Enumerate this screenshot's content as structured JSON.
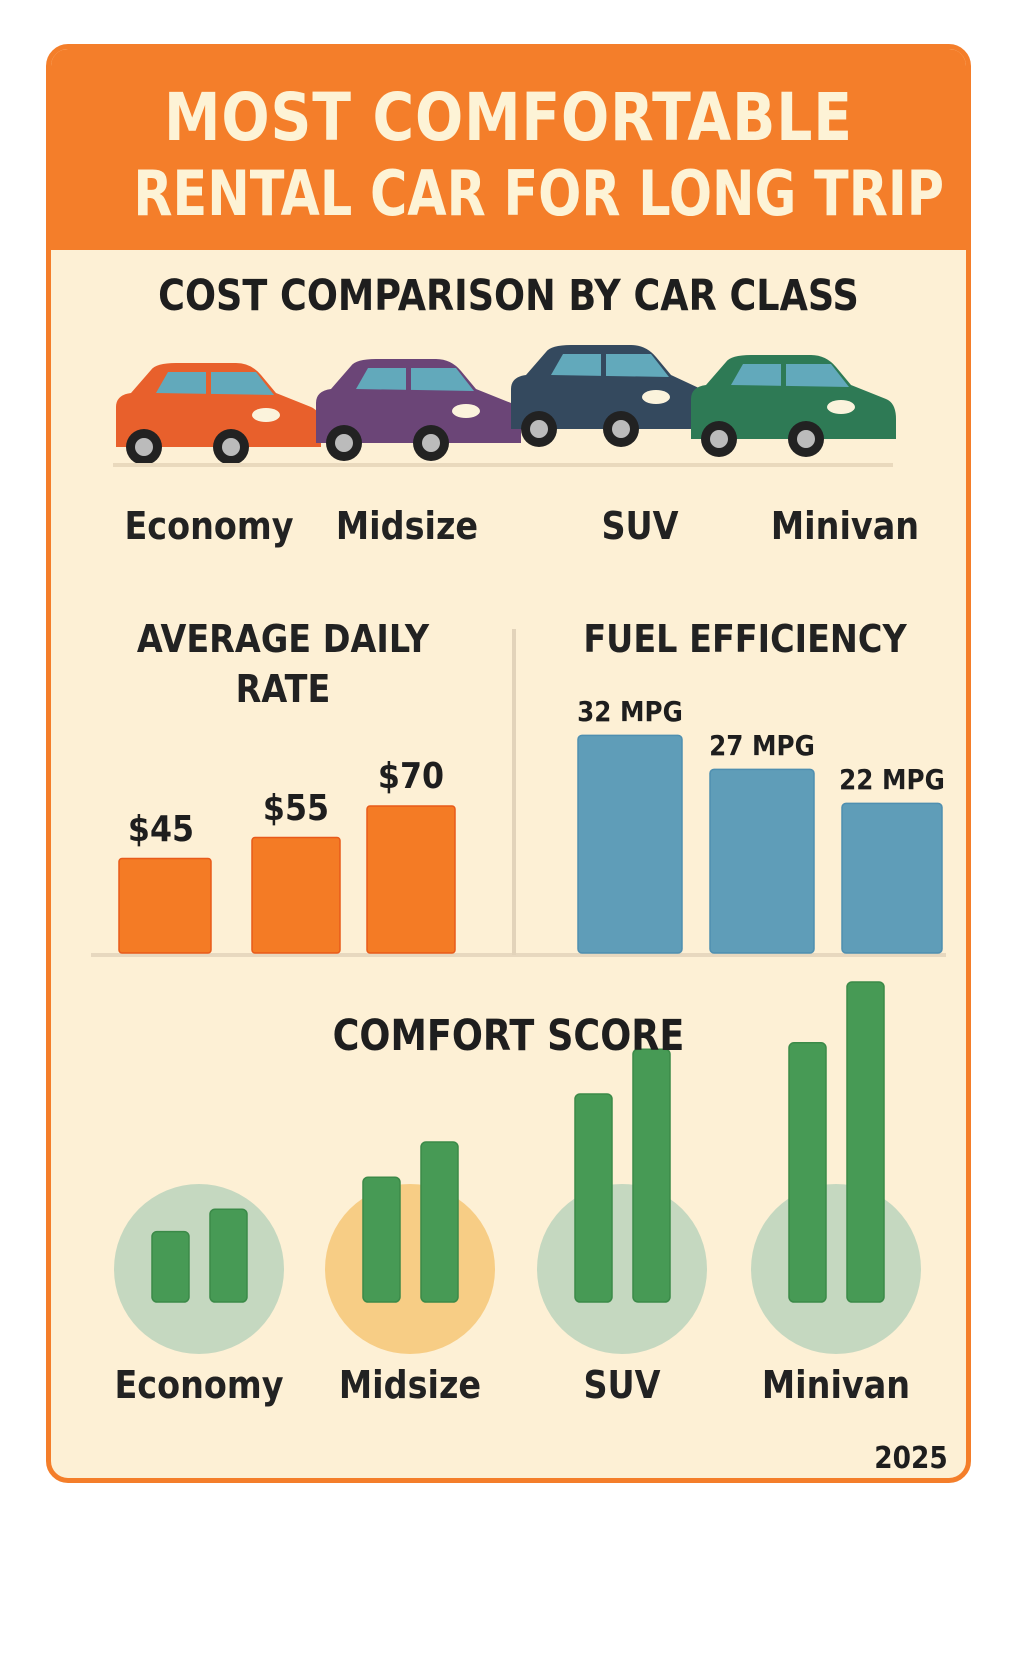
{
  "header": {
    "title_line1": "MOST COMFORTABLE",
    "title_line2": "RENTAL CAR FOR LONG TRIP"
  },
  "cost_section": {
    "title": "COST COMPARISON BY CAR CLASS",
    "cars": [
      {
        "label": "Economy",
        "color": "#e8602c"
      },
      {
        "label": "Midsize",
        "color": "#6b4577"
      },
      {
        "label": "SUV",
        "color": "#34495e"
      },
      {
        "label": "Minivan",
        "color": "#2e7a55"
      }
    ]
  },
  "chart_data": [
    {
      "type": "bar",
      "title": "AVERAGE DAILY RATE",
      "title_line1": "AVERAGE DAILY",
      "title_line2": "RATE",
      "values": [
        45,
        55,
        70
      ],
      "labels": [
        "$45",
        "$55",
        "$70"
      ],
      "color": "#f47b25"
    },
    {
      "type": "bar",
      "title": "FUEL EFFICIENCY",
      "values": [
        32,
        27,
        22
      ],
      "labels": [
        "32 MPG",
        "27 MPG",
        "22 MPG"
      ],
      "color": "#5f9db8"
    },
    {
      "type": "bar",
      "title": "COMFORT SCORE",
      "categories": [
        "Economy",
        "Midsize",
        "SUV",
        "Minivan"
      ],
      "series_levels": [
        [
          0.22,
          0.29
        ],
        [
          0.39,
          0.5
        ],
        [
          0.65,
          0.79
        ],
        [
          0.81,
          1.0
        ]
      ],
      "bar_color": "#479a55",
      "circle_colors": [
        "#c5d8c0",
        "#f7cd85",
        "#c5d8c0",
        "#c5d8c0"
      ]
    }
  ],
  "footer": {
    "year": "2025"
  }
}
